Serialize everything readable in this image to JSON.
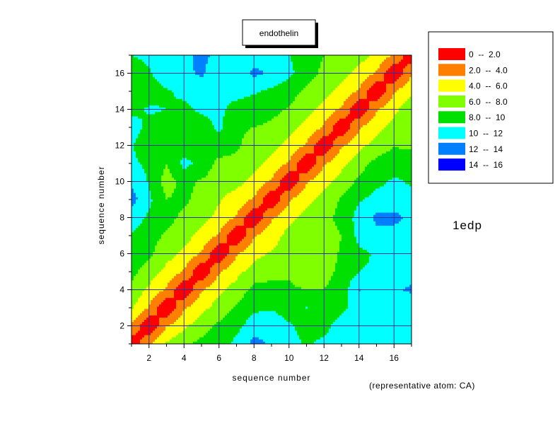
{
  "chart_data": {
    "type": "heatmap",
    "title": "endothelin",
    "xlabel": "sequence number",
    "ylabel": "sequence number",
    "xlim": [
      1,
      17
    ],
    "ylim": [
      1,
      17
    ],
    "xticks": [
      "2",
      "4",
      "6",
      "8",
      "10",
      "12",
      "14",
      "16"
    ],
    "yticks": [
      "2",
      "4",
      "6",
      "8",
      "10",
      "12",
      "14",
      "16"
    ],
    "grid": true,
    "legend_position": "top-right",
    "side_label": "1edp",
    "note": "(representative atom: CA)",
    "levels": [
      {
        "label": "0  --  2.0",
        "min": 0,
        "max": 2,
        "color": "#ff0000"
      },
      {
        "label": "2.0  --  4.0",
        "min": 2,
        "max": 4,
        "color": "#ff8000"
      },
      {
        "label": "4.0  --  6.0",
        "min": 4,
        "max": 6,
        "color": "#ffff00"
      },
      {
        "label": "6.0  --  8.0",
        "min": 6,
        "max": 8,
        "color": "#80ff00"
      },
      {
        "label": "8.0  --  10",
        "min": 8,
        "max": 10,
        "color": "#00e000"
      },
      {
        "label": "10  --  12",
        "min": 10,
        "max": 12,
        "color": "#00ffff"
      },
      {
        "label": "12  --  14",
        "min": 12,
        "max": 14,
        "color": "#0080ff"
      },
      {
        "label": "14  --  16",
        "min": 14,
        "max": 16,
        "color": "#0000ff"
      }
    ],
    "matrix": [
      [
        0.0,
        3.8,
        6.2,
        7.5,
        8.6,
        9.2,
        10.5,
        12.6,
        11.8,
        10.6,
        9.8,
        10.4,
        11.0,
        10.8,
        11.6,
        10.8,
        10.2
      ],
      [
        3.8,
        0.0,
        3.8,
        5.6,
        7.0,
        8.4,
        9.4,
        11.0,
        11.4,
        10.2,
        9.4,
        9.4,
        10.8,
        11.6,
        12.0,
        11.2,
        10.4
      ],
      [
        6.2,
        3.8,
        0.0,
        3.8,
        5.4,
        6.8,
        8.2,
        9.6,
        9.8,
        9.0,
        10.0,
        8.8,
        9.6,
        10.6,
        11.4,
        11.0,
        11.2
      ],
      [
        7.5,
        5.6,
        3.8,
        0.0,
        3.8,
        5.6,
        6.8,
        8.6,
        8.8,
        8.2,
        8.0,
        8.0,
        8.8,
        12.2,
        10.8,
        11.8,
        12.2
      ],
      [
        8.6,
        7.0,
        5.4,
        3.8,
        0.0,
        3.8,
        5.4,
        6.8,
        7.2,
        7.8,
        7.0,
        7.4,
        8.4,
        10.0,
        10.2,
        10.8,
        11.4
      ],
      [
        9.2,
        8.4,
        6.8,
        5.6,
        3.8,
        0.0,
        3.8,
        5.4,
        6.2,
        6.8,
        7.4,
        7.2,
        8.2,
        9.6,
        10.2,
        10.2,
        10.6
      ],
      [
        9.8,
        8.6,
        7.8,
        6.8,
        5.4,
        3.8,
        0.0,
        3.8,
        5.2,
        6.6,
        7.6,
        7.2,
        8.0,
        10.6,
        11.4,
        11.2,
        11.0
      ],
      [
        11.2,
        9.6,
        8.6,
        7.6,
        6.8,
        5.4,
        3.8,
        0.0,
        3.8,
        5.4,
        6.8,
        7.4,
        8.6,
        10.8,
        12.4,
        12.6,
        11.4
      ],
      [
        12.8,
        10.4,
        8.0,
        8.4,
        7.2,
        6.2,
        5.2,
        3.8,
        0.0,
        3.8,
        5.4,
        6.8,
        8.2,
        9.8,
        10.6,
        10.8,
        10.6
      ],
      [
        11.6,
        9.8,
        7.2,
        8.6,
        7.8,
        6.8,
        6.6,
        5.4,
        3.8,
        0.0,
        3.8,
        5.4,
        6.8,
        8.4,
        9.6,
        10.2,
        9.8
      ],
      [
        10.4,
        9.6,
        8.0,
        10.6,
        9.4,
        7.4,
        7.6,
        6.8,
        5.4,
        3.8,
        0.0,
        3.8,
        5.4,
        7.2,
        8.6,
        9.4,
        9.6
      ],
      [
        10.2,
        8.4,
        9.0,
        8.8,
        8.6,
        9.2,
        8.2,
        7.4,
        6.8,
        5.4,
        3.8,
        0.0,
        3.8,
        5.4,
        6.8,
        7.8,
        7.6
      ],
      [
        10.8,
        9.6,
        9.2,
        9.2,
        9.0,
        10.4,
        8.2,
        8.0,
        7.6,
        6.8,
        5.4,
        3.8,
        0.0,
        3.8,
        5.4,
        6.8,
        7.2
      ],
      [
        9.4,
        10.2,
        10.0,
        9.6,
        10.4,
        10.4,
        9.4,
        9.0,
        8.6,
        7.8,
        6.8,
        5.4,
        3.8,
        0.0,
        3.8,
        5.4,
        7.4
      ],
      [
        8.6,
        9.2,
        9.8,
        10.4,
        10.8,
        10.2,
        10.6,
        10.2,
        9.6,
        8.8,
        7.6,
        6.8,
        5.4,
        3.8,
        0.0,
        3.8,
        5.6
      ],
      [
        9.0,
        9.8,
        11.2,
        11.4,
        12.4,
        10.2,
        11.0,
        12.4,
        11.8,
        10.4,
        9.0,
        7.4,
        6.6,
        5.4,
        3.8,
        0.0,
        3.8
      ],
      [
        10.0,
        10.4,
        10.6,
        11.2,
        12.8,
        11.0,
        10.8,
        11.2,
        10.8,
        10.0,
        9.4,
        8.0,
        7.4,
        6.8,
        5.6,
        3.8,
        0.0
      ]
    ]
  }
}
